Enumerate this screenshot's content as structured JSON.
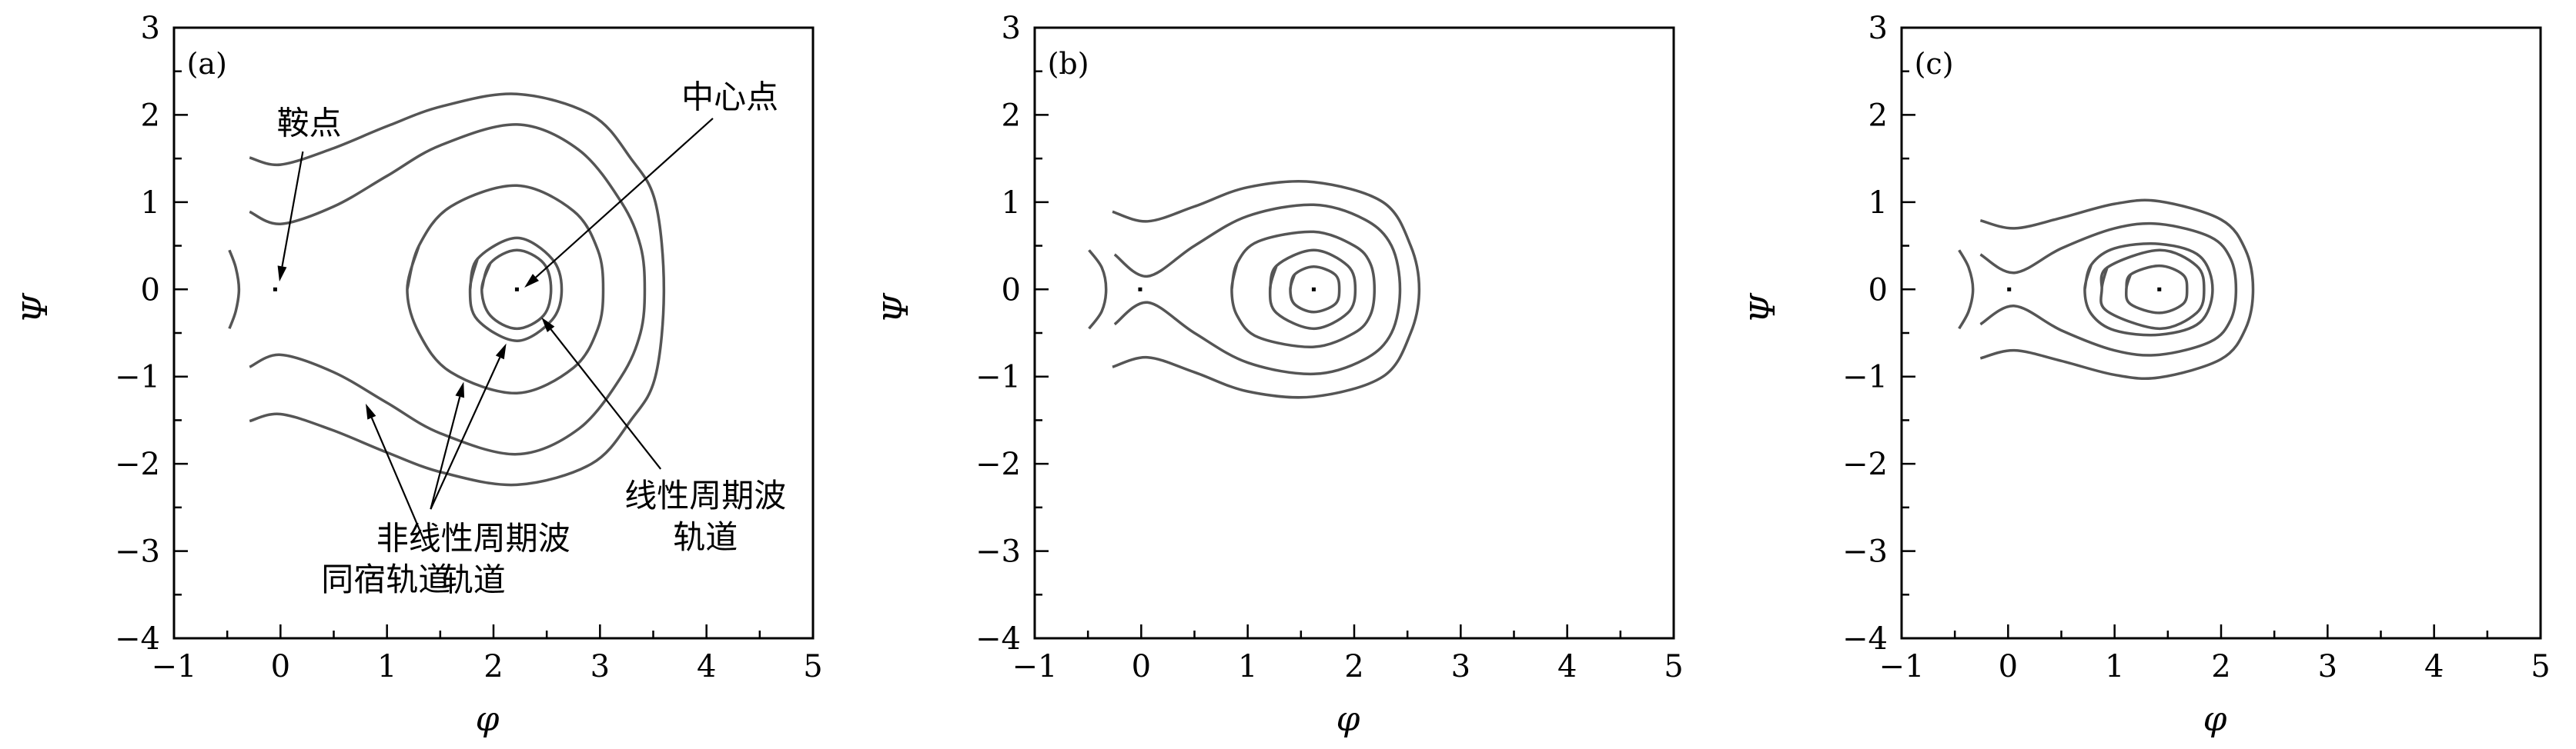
{
  "chart_data": [
    {
      "type": "line",
      "panel_label": "(a)",
      "xlabel": "φ",
      "ylabel": "Ψ",
      "xlim": [
        -1,
        5
      ],
      "ylim": [
        -4,
        3
      ],
      "xticks": [
        -1,
        0,
        1,
        2,
        3,
        4,
        5
      ],
      "xtick_labels": [
        "−1",
        "0",
        "1",
        "2",
        "3",
        "4",
        "5"
      ],
      "yticks": [
        3,
        2,
        1,
        0,
        -1,
        -2,
        -3,
        -4
      ],
      "ytick_labels": [
        "3",
        "2",
        "1",
        "0",
        "−1",
        "−2",
        "−3",
        "−4"
      ],
      "line_color": "#555555",
      "curves_symmetric_about_psi_zero": true,
      "curves_upper_branch": [
        [
          [
            -0.29,
            1.51
          ],
          [
            0,
            1.43
          ],
          [
            0.48,
            1.61
          ],
          [
            1,
            1.87
          ],
          [
            1.52,
            2.1
          ],
          [
            2.22,
            2.24
          ],
          [
            2.92,
            2.0
          ],
          [
            3.29,
            1.5
          ],
          [
            3.52,
            1.0
          ],
          [
            3.6,
            0
          ]
        ],
        [
          [
            -0.29,
            0.89
          ],
          [
            0,
            0.75
          ],
          [
            0.5,
            0.95
          ],
          [
            1,
            1.3
          ],
          [
            1.5,
            1.65
          ],
          [
            2.22,
            1.89
          ],
          [
            2.8,
            1.6
          ],
          [
            3.2,
            1.0
          ],
          [
            3.38,
            0.5
          ],
          [
            3.42,
            0
          ]
        ],
        [
          [
            1.19,
            0
          ],
          [
            1.3,
            0.5
          ],
          [
            1.6,
            0.95
          ],
          [
            2.22,
            1.19
          ],
          [
            2.75,
            0.9
          ],
          [
            2.98,
            0.45
          ],
          [
            3.03,
            0
          ]
        ],
        [
          [
            1.78,
            0
          ],
          [
            1.85,
            0.35
          ],
          [
            2.22,
            0.59
          ],
          [
            2.55,
            0.35
          ],
          [
            2.64,
            0
          ]
        ],
        [
          [
            1.89,
            0
          ],
          [
            1.97,
            0.3
          ],
          [
            2.22,
            0.45
          ],
          [
            2.47,
            0.3
          ],
          [
            2.54,
            0
          ]
        ],
        [
          [
            -0.48,
            0.45
          ],
          [
            -0.42,
            0.25
          ],
          [
            -0.39,
            0
          ]
        ]
      ],
      "fixed_points": [
        {
          "name": "saddle",
          "x": -0.05,
          "y": 0
        },
        {
          "name": "center",
          "x": 2.22,
          "y": 0
        }
      ],
      "annotations": [
        {
          "lines": [
            "鞍点"
          ],
          "x": 0.27,
          "y": 1.91,
          "arrows": [
            [
              [
                0.21,
                1.58
              ],
              [
                -0.01,
                0.09
              ]
            ]
          ]
        },
        {
          "lines": [
            "中心点"
          ],
          "x": 4.22,
          "y": 2.21,
          "arrows": [
            [
              [
                4.06,
                1.96
              ],
              [
                2.29,
                0.02
              ]
            ]
          ]
        },
        {
          "lines": [
            "线性周期波",
            "轨道"
          ],
          "x": 3.99,
          "y": -2.36,
          "arrows": [
            [
              [
                3.57,
                -2.06
              ],
              [
                2.45,
                -0.32
              ]
            ]
          ]
        },
        {
          "lines": [
            "非线性周期波",
            "轨道"
          ],
          "x": 1.81,
          "y": -2.85,
          "arrows": [
            [
              [
                1.41,
                -2.52
              ],
              [
                1.72,
                -1.06
              ]
            ],
            [
              [
                1.41,
                -2.52
              ],
              [
                2.12,
                -0.62
              ]
            ]
          ]
        },
        {
          "lines": [
            "同宿轨道"
          ],
          "x": 0.99,
          "y": -3.32,
          "arrows": [
            [
              [
                1.37,
                -2.94
              ],
              [
                0.8,
                -1.31
              ]
            ]
          ]
        }
      ]
    },
    {
      "type": "line",
      "panel_label": "(b)",
      "xlabel": "φ",
      "ylabel": "Ψ",
      "xlim": [
        -1,
        5
      ],
      "ylim": [
        -4,
        3
      ],
      "xticks": [
        -1,
        0,
        1,
        2,
        3,
        4,
        5
      ],
      "xtick_labels": [
        "−1",
        "0",
        "1",
        "2",
        "3",
        "4",
        "5"
      ],
      "yticks": [
        3,
        2,
        1,
        0,
        -1,
        -2,
        -3,
        -4
      ],
      "ytick_labels": [
        "3",
        "2",
        "1",
        "0",
        "−1",
        "−2",
        "−3",
        "−4"
      ],
      "line_color": "#555555",
      "curves_symmetric_about_psi_zero": true,
      "curves_upper_branch": [
        [
          [
            -0.27,
            0.89
          ],
          [
            0.06,
            0.78
          ],
          [
            0.5,
            0.95
          ],
          [
            1,
            1.17
          ],
          [
            1.62,
            1.23
          ],
          [
            2.27,
            1.0
          ],
          [
            2.53,
            0.5
          ],
          [
            2.61,
            0
          ]
        ],
        [
          [
            -0.25,
            0.4
          ],
          [
            0.06,
            0.15
          ],
          [
            0.5,
            0.5
          ],
          [
            1,
            0.84
          ],
          [
            1.62,
            0.97
          ],
          [
            2.1,
            0.8
          ],
          [
            2.35,
            0.5
          ],
          [
            2.43,
            0
          ]
        ],
        [
          [
            0.85,
            0
          ],
          [
            0.9,
            0.3
          ],
          [
            1.1,
            0.55
          ],
          [
            1.62,
            0.66
          ],
          [
            2.0,
            0.5
          ],
          [
            2.15,
            0.3
          ],
          [
            2.19,
            0
          ]
        ],
        [
          [
            1.21,
            0
          ],
          [
            1.27,
            0.27
          ],
          [
            1.62,
            0.45
          ],
          [
            1.94,
            0.27
          ],
          [
            2.01,
            0
          ]
        ],
        [
          [
            1.4,
            0
          ],
          [
            1.44,
            0.17
          ],
          [
            1.62,
            0.26
          ],
          [
            1.82,
            0.17
          ],
          [
            1.86,
            0
          ]
        ],
        [
          [
            -0.49,
            0.45
          ],
          [
            -0.37,
            0.25
          ],
          [
            -0.33,
            0
          ]
        ]
      ],
      "fixed_points": [
        {
          "name": "saddle",
          "x": -0.01,
          "y": 0
        },
        {
          "name": "center",
          "x": 1.62,
          "y": 0
        }
      ],
      "annotations": []
    },
    {
      "type": "line",
      "panel_label": "(c)",
      "xlabel": "φ",
      "ylabel": "Ψ",
      "xlim": [
        -1,
        5
      ],
      "ylim": [
        -4,
        3
      ],
      "xticks": [
        -1,
        0,
        1,
        2,
        3,
        4,
        5
      ],
      "xtick_labels": [
        "−1",
        "0",
        "1",
        "2",
        "3",
        "4",
        "5"
      ],
      "yticks": [
        3,
        2,
        1,
        0,
        -1,
        -2,
        -3,
        -4
      ],
      "ytick_labels": [
        "3",
        "2",
        "1",
        "0",
        "−1",
        "−2",
        "−3",
        "−4"
      ],
      "line_color": "#555555",
      "curves_symmetric_about_psi_zero": true,
      "curves_upper_branch": [
        [
          [
            -0.26,
            0.79
          ],
          [
            0.06,
            0.7
          ],
          [
            0.5,
            0.82
          ],
          [
            1,
            0.98
          ],
          [
            1.42,
            1.01
          ],
          [
            2.0,
            0.8
          ],
          [
            2.23,
            0.45
          ],
          [
            2.3,
            0
          ]
        ],
        [
          [
            -0.26,
            0.4
          ],
          [
            0.06,
            0.19
          ],
          [
            0.5,
            0.47
          ],
          [
            1,
            0.7
          ],
          [
            1.42,
            0.75
          ],
          [
            1.9,
            0.6
          ],
          [
            2.09,
            0.35
          ],
          [
            2.14,
            0
          ]
        ],
        [
          [
            0.72,
            0
          ],
          [
            0.78,
            0.28
          ],
          [
            1.0,
            0.47
          ],
          [
            1.42,
            0.52
          ],
          [
            1.8,
            0.38
          ],
          [
            1.92,
            0
          ]
        ],
        [
          [
            0.88,
            0
          ],
          [
            0.93,
            0.25
          ],
          [
            1.42,
            0.45
          ],
          [
            1.77,
            0.27
          ],
          [
            1.84,
            0
          ]
        ],
        [
          [
            1.11,
            0
          ],
          [
            1.15,
            0.17
          ],
          [
            1.42,
            0.27
          ],
          [
            1.64,
            0.17
          ],
          [
            1.68,
            0
          ]
        ],
        [
          [
            -0.46,
            0.45
          ],
          [
            -0.37,
            0.25
          ],
          [
            -0.33,
            0
          ]
        ]
      ],
      "fixed_points": [
        {
          "name": "saddle",
          "x": 0.01,
          "y": 0
        },
        {
          "name": "center",
          "x": 1.42,
          "y": 0
        }
      ],
      "annotations": []
    }
  ]
}
